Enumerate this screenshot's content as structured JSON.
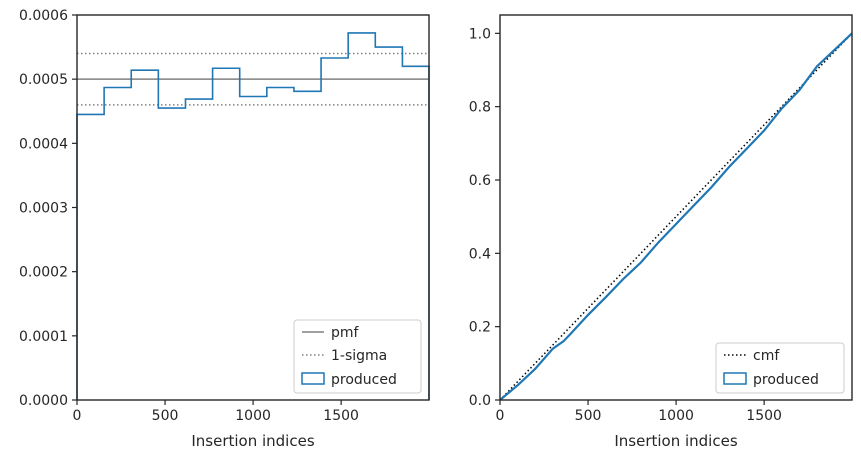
{
  "chart_data": [
    {
      "type": "step",
      "xlabel": "Insertion indices",
      "ylabel": "",
      "xlim": [
        0,
        1999
      ],
      "ylim": [
        0,
        0.0006
      ],
      "xticks": [
        0,
        500,
        1000,
        1500
      ],
      "xtick_labels": [
        "0",
        "500",
        "1000",
        "1500"
      ],
      "yticks": [
        0,
        0.0001,
        0.0002,
        0.0003,
        0.0004,
        0.0005,
        0.0006
      ],
      "ytick_labels": [
        "0.0000",
        "0.0001",
        "0.0002",
        "0.0003",
        "0.0004",
        "0.0005",
        "0.0006"
      ],
      "grid": false,
      "legend_position": "lower-right",
      "lines": [
        {
          "name": "pmf",
          "value": 0.0005,
          "color": "#808080",
          "style": "solid"
        },
        {
          "name": "1-sigma",
          "values": [
            0.00054,
            0.00046
          ],
          "color": "#808080",
          "style": "dotted"
        }
      ],
      "series": [
        {
          "name": "produced",
          "color": "#1f77b4",
          "bin_edges": [
            0,
            154,
            308,
            462,
            616,
            770,
            924,
            1078,
            1232,
            1386,
            1540,
            1694,
            1848,
            1999
          ],
          "values": [
            0.000445,
            0.000487,
            0.000514,
            0.000455,
            0.000469,
            0.000517,
            0.000473,
            0.000487,
            0.000481,
            0.000533,
            0.000572,
            0.00055,
            0.00052
          ]
        }
      ]
    },
    {
      "type": "line",
      "xlabel": "Insertion indices",
      "ylabel": "",
      "xlim": [
        0,
        1999
      ],
      "ylim": [
        0,
        1.05
      ],
      "xticks": [
        0,
        500,
        1000,
        1500
      ],
      "xtick_labels": [
        "0",
        "500",
        "1000",
        "1500"
      ],
      "yticks": [
        0,
        0.2,
        0.4,
        0.6,
        0.8,
        1.0
      ],
      "ytick_labels": [
        "0.0",
        "0.2",
        "0.4",
        "0.6",
        "0.8",
        "1.0"
      ],
      "grid": false,
      "legend_position": "lower-right",
      "series": [
        {
          "name": "cmf",
          "color": "#000000",
          "style": "dotted",
          "x": [
            0,
            1999
          ],
          "y": [
            0,
            1.0
          ]
        },
        {
          "name": "produced",
          "color": "#1f77b4",
          "style": "solid",
          "x": [
            0,
            100,
            200,
            300,
            360,
            400,
            500,
            600,
            700,
            800,
            900,
            1000,
            1100,
            1200,
            1300,
            1400,
            1500,
            1600,
            1700,
            1800,
            1900,
            1999
          ],
          "y": [
            0,
            0.04,
            0.085,
            0.14,
            0.16,
            0.18,
            0.232,
            0.28,
            0.33,
            0.375,
            0.43,
            0.48,
            0.53,
            0.58,
            0.635,
            0.685,
            0.735,
            0.795,
            0.845,
            0.91,
            0.955,
            1.0
          ]
        }
      ]
    }
  ]
}
